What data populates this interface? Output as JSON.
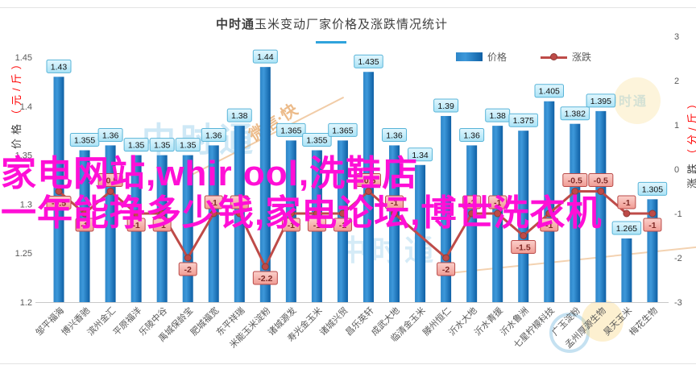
{
  "title": {
    "brand": "中时通",
    "text": "玉米变动厂家价格及涨跌情况统计"
  },
  "legend": [
    {
      "label": "价格",
      "type": "bar"
    },
    {
      "label": "涨跌",
      "type": "line"
    }
  ],
  "axis_titles": {
    "left": {
      "name": "价格",
      "unit": "（元/斤）"
    },
    "right": {
      "name": "涨跌",
      "unit": "（分/斤）"
    }
  },
  "watermarks": {
    "magenta_line1": "家电网站,whir ool,洗鞋店",
    "magenta_line2": "一年能挣多少钱,家电论坛,博世洗衣机",
    "brand_stamp": "中时通",
    "orange_note": "微信·快",
    "color_magenta": "#FF0FD6"
  },
  "chart_data": {
    "type": "bar",
    "combo": "bar+line",
    "title": "中时通玉米变动厂家价格及涨跌情况统计",
    "categories": [
      "邹平福海",
      "博兴香驰",
      "滨州金汇",
      "平原福洋",
      "乐陵中谷",
      "禹城保龄宝",
      "肥城福宽",
      "东平祥瑞",
      "米能玉米淀粉",
      "诸城源发",
      "寿光金玉米",
      "诸城兴贸",
      "昌乐英轩",
      "成武大地",
      "临清金玉米",
      "滕州恒仁",
      "沂水大地",
      "沂水青援",
      "沂水鲁洲",
      "七星柠檬科技",
      "广玉淀粉",
      "孟州厚源生物",
      "昊天玉米",
      "梅花生物"
    ],
    "series": [
      {
        "name": "价格",
        "type": "bar",
        "unit": "元/斤",
        "axis": "left",
        "values": [
          1.43,
          1.355,
          1.36,
          1.35,
          1.35,
          1.35,
          1.36,
          1.38,
          1.44,
          1.365,
          1.355,
          1.365,
          1.435,
          1.36,
          1.34,
          1.39,
          1.36,
          1.38,
          1.375,
          1.405,
          1.382,
          1.395,
          1.265,
          1.305
        ]
      },
      {
        "name": "涨跌",
        "type": "line",
        "unit": "分/斤",
        "axis": "right",
        "values": [
          -0.5,
          -1,
          -0.5,
          -1,
          -1,
          -2,
          -1,
          -1,
          -2.2,
          -1,
          -1,
          -1,
          -0.5,
          -1,
          null,
          -2,
          -1,
          -1,
          -1.5,
          -1,
          -0.5,
          -0.5,
          -1,
          -1
        ],
        "label_side": [
          "below",
          "below",
          "above",
          "below",
          "below",
          "below",
          "above",
          "above",
          "below",
          "below",
          "below",
          "below",
          "above",
          "above",
          "none",
          "below",
          "above",
          "above",
          "below",
          "below",
          "above",
          "above",
          "above",
          "below"
        ]
      }
    ],
    "left_axis": {
      "min": 1.2,
      "max": 1.45,
      "ticks": [
        1.45,
        1.4,
        1.35,
        1.3,
        1.25,
        1.2
      ]
    },
    "right_axis": {
      "min": -3,
      "max": 3,
      "ticks": [
        3,
        2,
        1,
        0,
        -1,
        -2,
        -3
      ]
    },
    "grid": false,
    "legend_position": "top-right",
    "colors": {
      "bar": "#1F74B8",
      "line": "#BE4B48",
      "price_label_bg": "#C9EEFB",
      "price_label_border": "#58B4D8",
      "change_label_bg": "#F5ACA6",
      "change_label_border": "#B94A48"
    }
  }
}
